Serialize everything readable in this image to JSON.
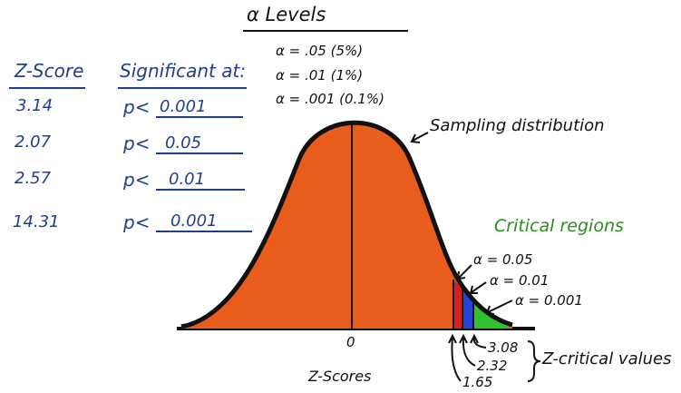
{
  "alpha_levels": {
    "title": "α  Levels",
    "lines": [
      "α = .05 (5%)",
      "α = .01 (1%)",
      "α = .001 (0.1%)"
    ]
  },
  "table": {
    "z_header": "Z-Score",
    "sig_header": "Significant at:",
    "rows": [
      {
        "z": "3.14",
        "prefix": "p<",
        "p": "0.001"
      },
      {
        "z": "2.07",
        "prefix": "p<",
        "p": "0.05"
      },
      {
        "z": "2.57",
        "prefix": "p<",
        "p": "0.01"
      },
      {
        "z": "14.31",
        "prefix": "p<",
        "p": "0.001"
      }
    ]
  },
  "curve": {
    "label": "Sampling distribution",
    "zero_label": "0",
    "x_axis_label": "Z-Scores",
    "fill_color": "#e85d1c",
    "region_colors": {
      "red": "#d8211f",
      "blue": "#2046d6",
      "green": "#2ec22e"
    }
  },
  "critical": {
    "title": "Critical regions",
    "alphas": [
      "α = 0.05",
      "α = 0.01",
      "α = 0.001"
    ],
    "values": [
      "3.08",
      "2.32",
      "1.65"
    ],
    "values_label": "Z-critical values"
  }
}
